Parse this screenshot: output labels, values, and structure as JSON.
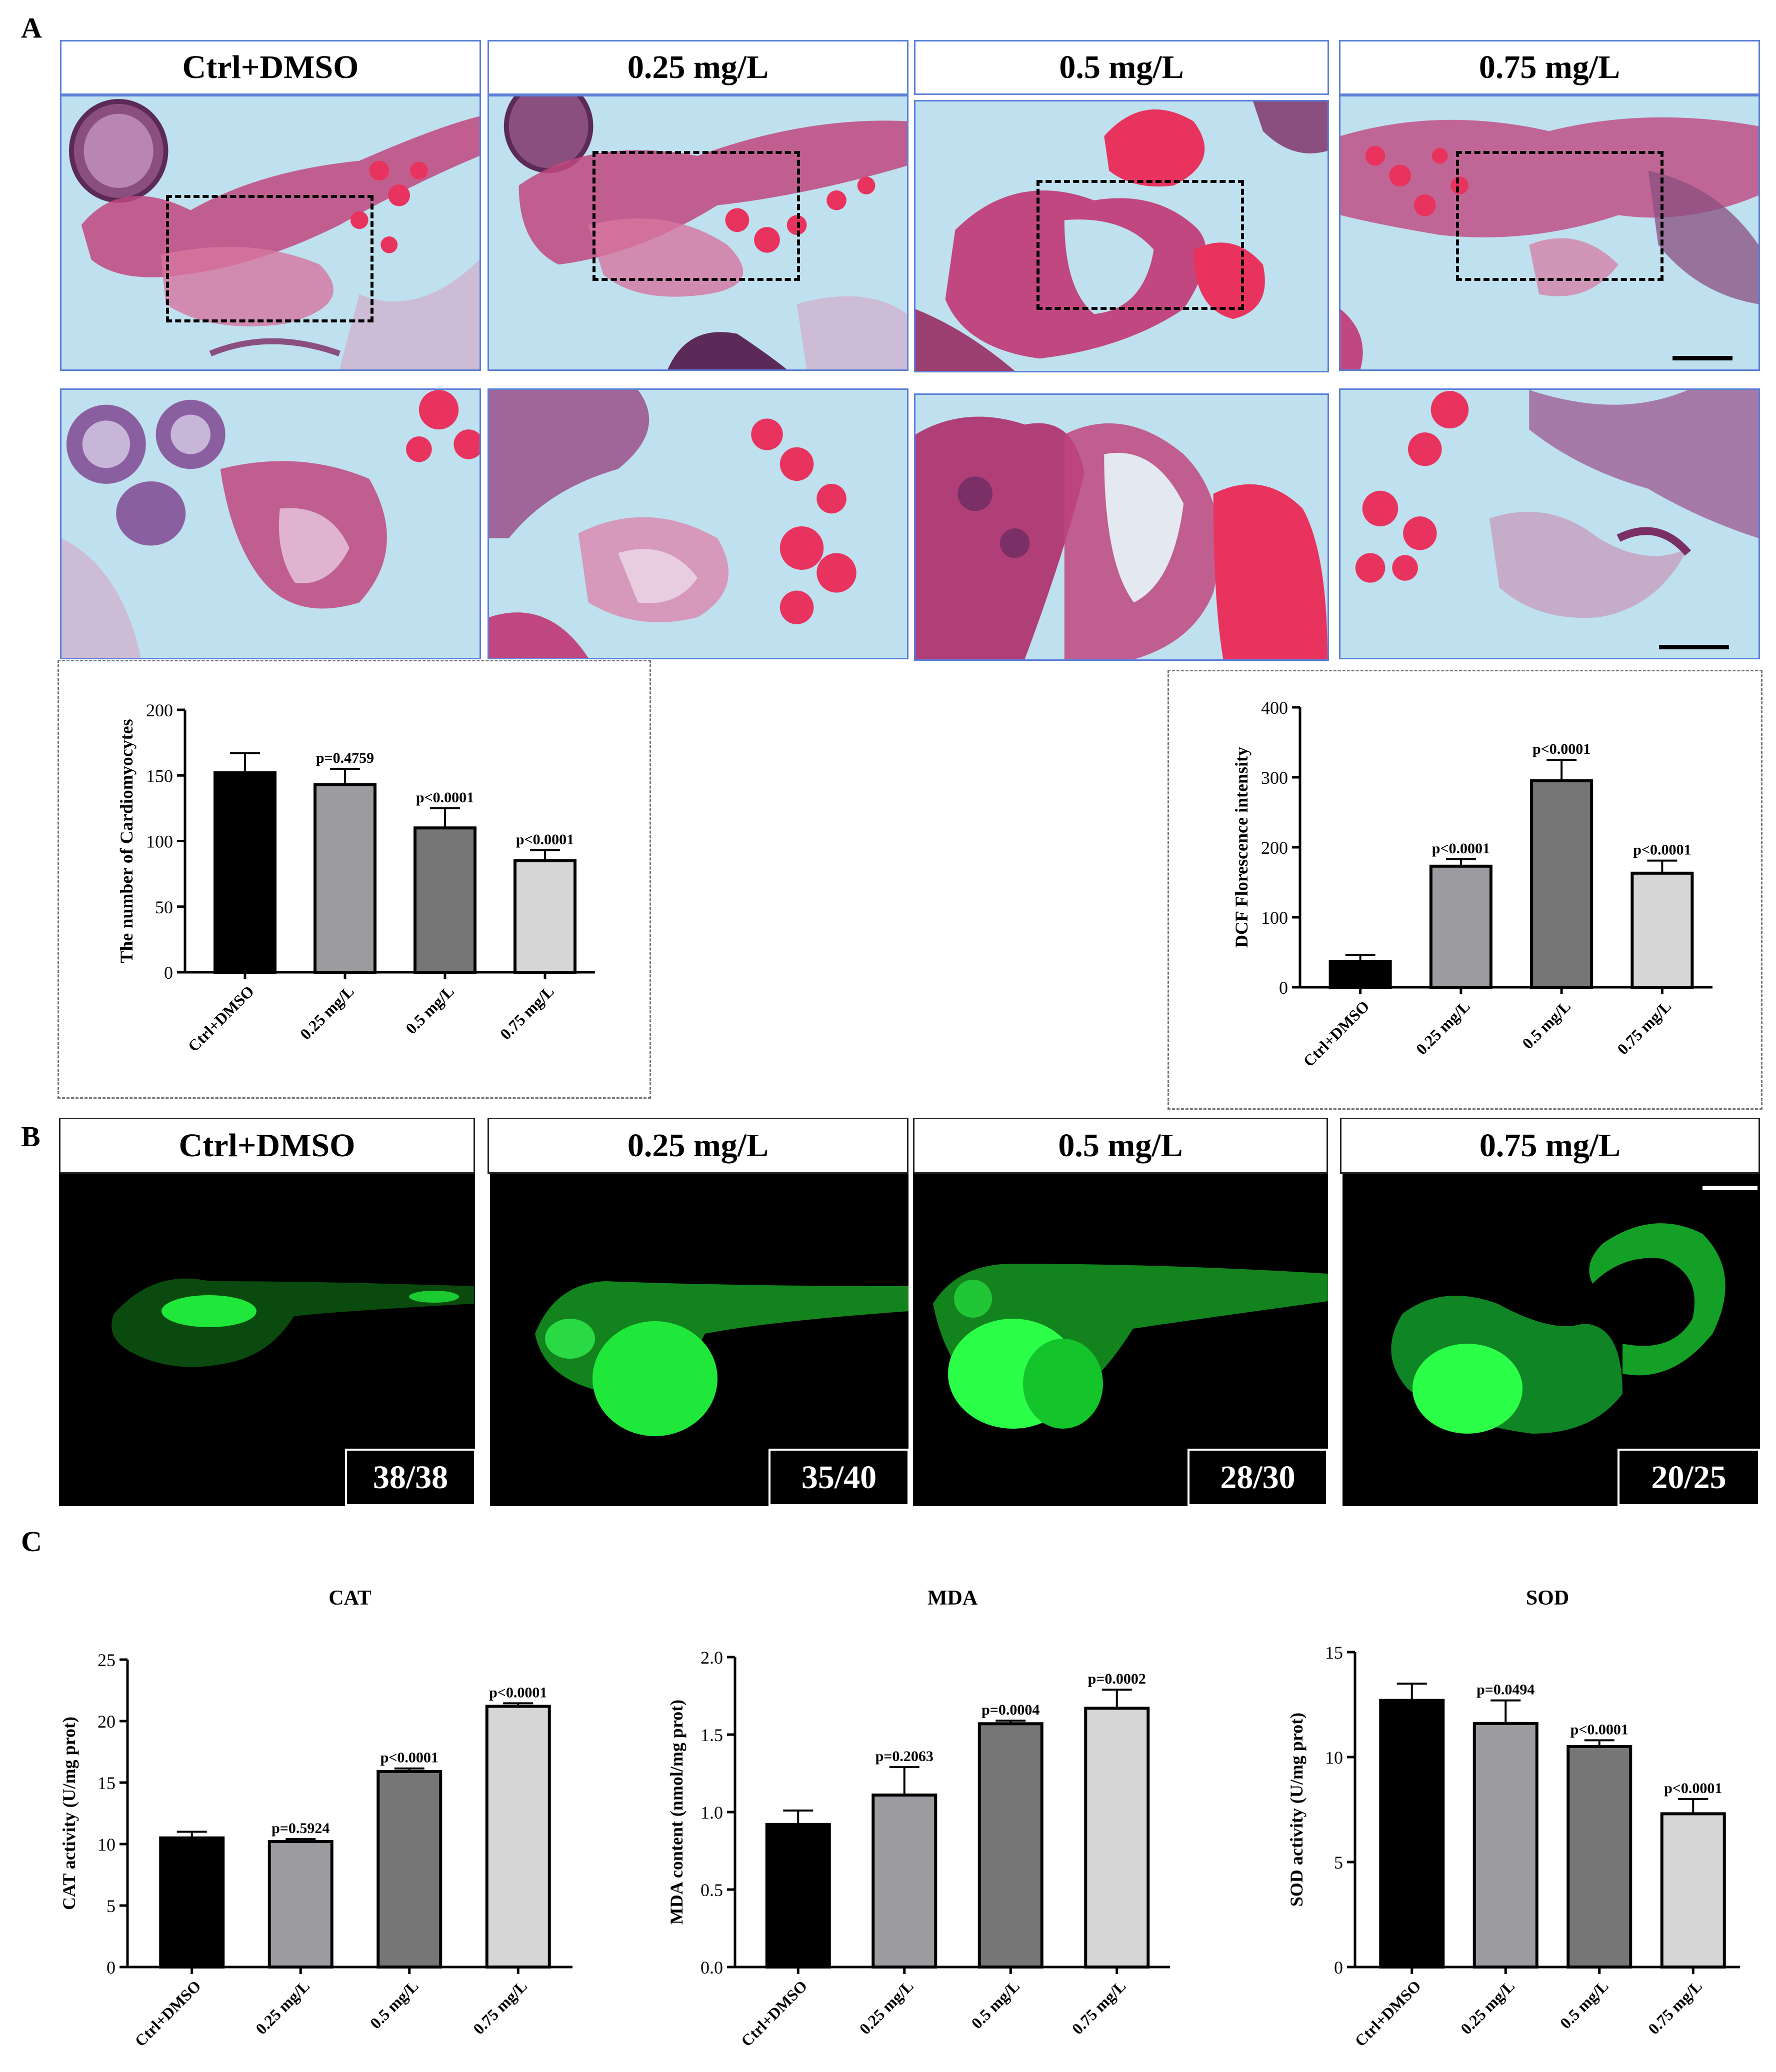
{
  "panel_a": {
    "label": "A",
    "columns": [
      "Ctrl+DMSO",
      "0.25 mg/L",
      "0.5 mg/L",
      "0.75 mg/L"
    ]
  },
  "panel_b": {
    "label": "B",
    "columns": [
      "Ctrl+DMSO",
      "0.25 mg/L",
      "0.5 mg/L",
      "0.75 mg/L"
    ],
    "ratios": [
      "38/38",
      "35/40",
      "28/30",
      "20/25"
    ]
  },
  "panel_c": {
    "label": "C"
  },
  "colors": {
    "he_background": "#bfe0ee",
    "he_tissue": "#c0477f",
    "he_blood": "#e8335f",
    "fluor_green": "#1fe83a",
    "header_border": "#5b7fd6"
  },
  "chart_data": [
    {
      "id": "cardio",
      "type": "bar",
      "title": "",
      "ylabel": "The number of Cardiomyocytes",
      "categories": [
        "Ctrl+DMSO",
        "0.25 mg/L",
        "0.5 mg/L",
        "0.75 mg/L"
      ],
      "values": [
        152,
        143,
        110,
        85
      ],
      "errors": [
        15,
        12,
        15,
        8
      ],
      "annotations": [
        "",
        "p=0.4759",
        "p<0.0001",
        "p<0.0001"
      ],
      "colors": [
        "#000000",
        "#9c9ca0",
        "#767676",
        "#d6d6d6"
      ],
      "ylim": [
        0,
        200
      ],
      "yticks": [
        0,
        50,
        100,
        150,
        200
      ]
    },
    {
      "id": "dcf",
      "type": "bar",
      "title": "",
      "ylabel": "DCF Florescence intensity",
      "categories": [
        "Ctrl+DMSO",
        "0.25 mg/L",
        "0.5 mg/L",
        "0.75 mg/L"
      ],
      "values": [
        37,
        173,
        295,
        163
      ],
      "errors": [
        9,
        10,
        30,
        18
      ],
      "annotations": [
        "",
        "p<0.0001",
        "p<0.0001",
        "p<0.0001"
      ],
      "colors": [
        "#000000",
        "#9c9ca0",
        "#767676",
        "#d6d6d6"
      ],
      "ylim": [
        0,
        400
      ],
      "yticks": [
        0,
        100,
        200,
        300,
        400
      ]
    },
    {
      "id": "cat",
      "type": "bar",
      "title": "CAT",
      "ylabel": "CAT activity (U/mg prot)",
      "categories": [
        "Ctrl+DMSO",
        "0.25 mg/L",
        "0.5 mg/L",
        "0.75 mg/L"
      ],
      "values": [
        10.5,
        10.2,
        15.9,
        21.2
      ],
      "errors": [
        0.5,
        0.2,
        0.25,
        0.25
      ],
      "annotations": [
        "",
        "p=0.5924",
        "p<0.0001",
        "p<0.0001"
      ],
      "colors": [
        "#000000",
        "#9c9ca0",
        "#767676",
        "#d6d6d6"
      ],
      "ylim": [
        0,
        25
      ],
      "yticks": [
        0,
        5,
        10,
        15,
        20,
        25
      ]
    },
    {
      "id": "mda",
      "type": "bar",
      "title": "MDA",
      "ylabel": "MDA content  (nmol/mg prot)",
      "categories": [
        "Ctrl+DMSO",
        "0.25 mg/L",
        "0.5 mg/L",
        "0.75 mg/L"
      ],
      "values": [
        0.92,
        1.11,
        1.57,
        1.67
      ],
      "errors": [
        0.09,
        0.18,
        0.02,
        0.12
      ],
      "annotations": [
        "",
        "p=0.2063",
        "p=0.0004",
        "p=0.0002"
      ],
      "colors": [
        "#000000",
        "#9c9ca0",
        "#767676",
        "#d6d6d6"
      ],
      "ylim": [
        0,
        2.0
      ],
      "yticks": [
        0.0,
        0.5,
        1.0,
        1.5,
        2.0
      ],
      "tickdecimals": 1
    },
    {
      "id": "sod",
      "type": "bar",
      "title": "SOD",
      "ylabel": "SOD activity (U/mg prot)",
      "categories": [
        "Ctrl+DMSO",
        "0.25 mg/L",
        "0.5 mg/L",
        "0.75 mg/L"
      ],
      "values": [
        12.7,
        11.6,
        10.5,
        7.3
      ],
      "errors": [
        0.8,
        1.1,
        0.3,
        0.7
      ],
      "annotations": [
        "",
        "p=0.0494",
        "p<0.0001",
        "p<0.0001"
      ],
      "colors": [
        "#000000",
        "#9c9ca0",
        "#767676",
        "#d6d6d6"
      ],
      "ylim": [
        0,
        15
      ],
      "yticks": [
        0,
        5,
        10,
        15
      ]
    }
  ]
}
